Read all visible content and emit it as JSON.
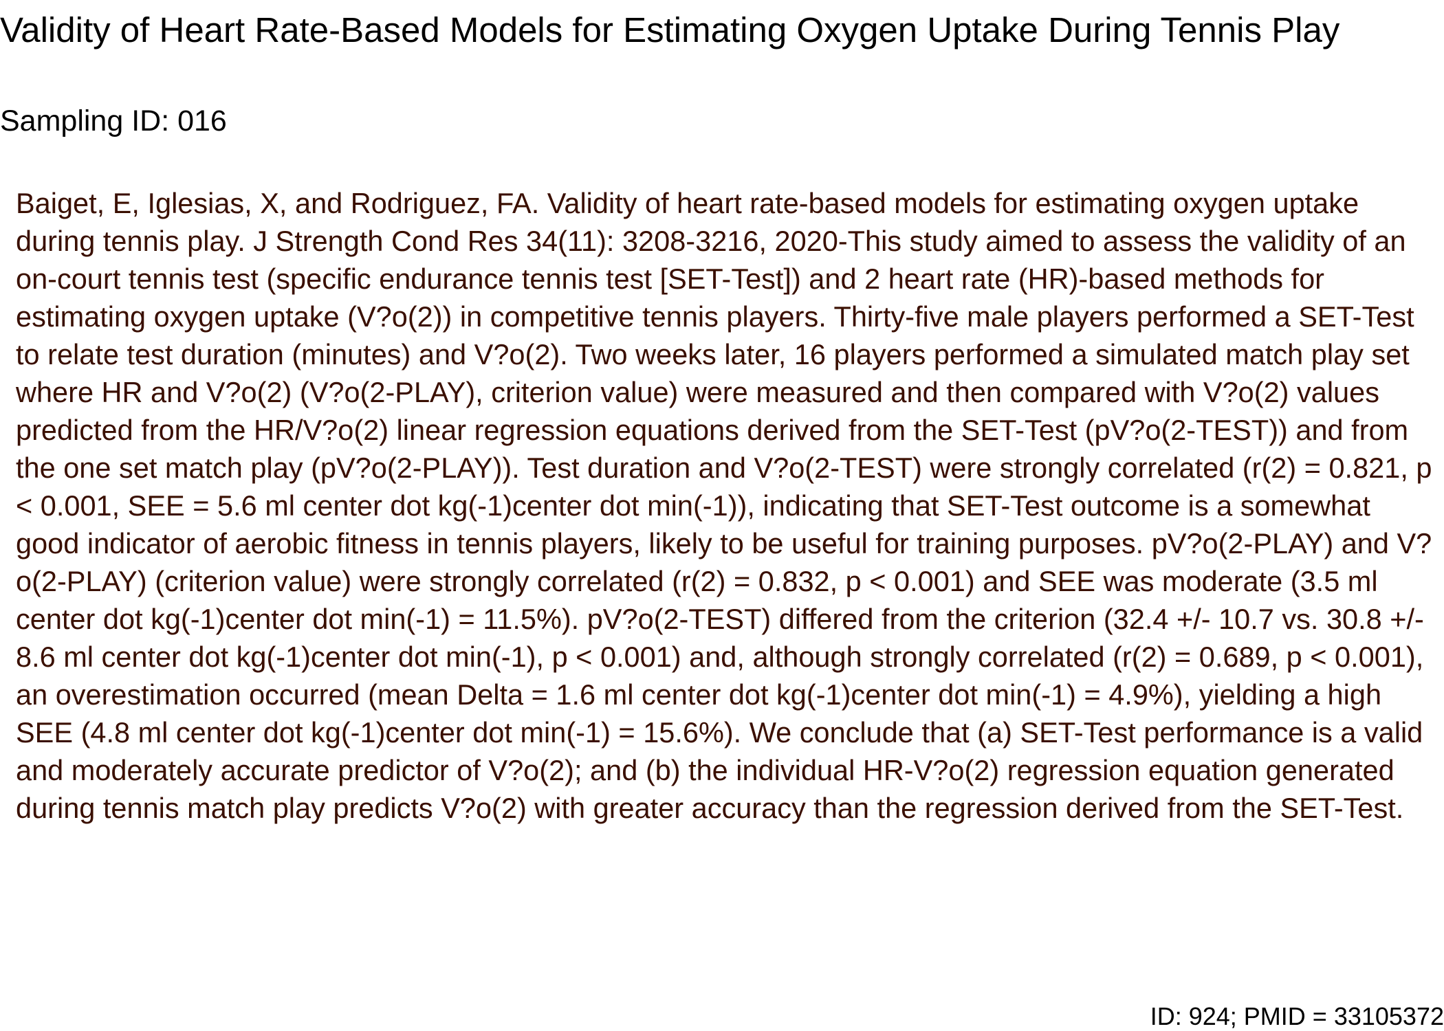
{
  "document": {
    "title": "Validity of Heart Rate-Based Models for Estimating Oxygen Uptake During Tennis Play",
    "sampling_id": "Sampling ID: 016",
    "abstract": "Baiget, E, Iglesias, X, and Rodriguez, FA. Validity of heart rate-based models for estimating oxygen uptake during tennis play. J Strength Cond Res 34(11): 3208-3216, 2020-This study aimed to assess the validity of an on-court tennis test (specific endurance tennis test [SET-Test]) and 2 heart rate (HR)-based methods for estimating oxygen uptake (V?o(2)) in competitive tennis players. Thirty-five male players performed a SET-Test to relate test duration (minutes) and V?o(2). Two weeks later, 16 players performed a simulated match play set where HR and V?o(2) (V?o(2-PLAY), criterion value) were measured and then compared with V?o(2) values predicted from the HR/V?o(2) linear regression equations derived from the SET-Test (pV?o(2-TEST)) and from the one set match play (pV?o(2-PLAY)). Test duration and V?o(2-TEST) were strongly correlated (r(2) = 0.821, p < 0.001, SEE = 5.6 ml center dot kg(-1)center dot min(-1)), indicating that SET-Test outcome is a somewhat good indicator of aerobic fitness in tennis players, likely to be useful for training purposes. pV?o(2-PLAY) and V?o(2-PLAY) (criterion value) were strongly correlated (r(2) = 0.832, p < 0.001) and SEE was moderate (3.5 ml center dot kg(-1)center dot min(-1) = 11.5%). pV?o(2-TEST) differed from the criterion (32.4 +/- 10.7 vs. 30.8 +/- 8.6 ml center dot kg(-1)center dot min(-1), p < 0.001) and, although strongly correlated (r(2) = 0.689, p < 0.001), an overestimation occurred (mean Delta = 1.6 ml center dot kg(-1)center dot min(-1) = 4.9%), yielding a high SEE (4.8 ml center dot kg(-1)center dot min(-1) = 15.6%). We conclude that (a) SET-Test performance is a valid and moderately accurate predictor of V?o(2); and (b) the individual HR-V?o(2) regression equation generated during tennis match play predicts V?o(2) with greater accuracy than the regression derived from the SET-Test.",
    "footer": "ID: 924; PMID = 33105372"
  },
  "colors": {
    "title": "#000000",
    "abstract_text": "#3a0f00",
    "background": "#ffffff"
  }
}
